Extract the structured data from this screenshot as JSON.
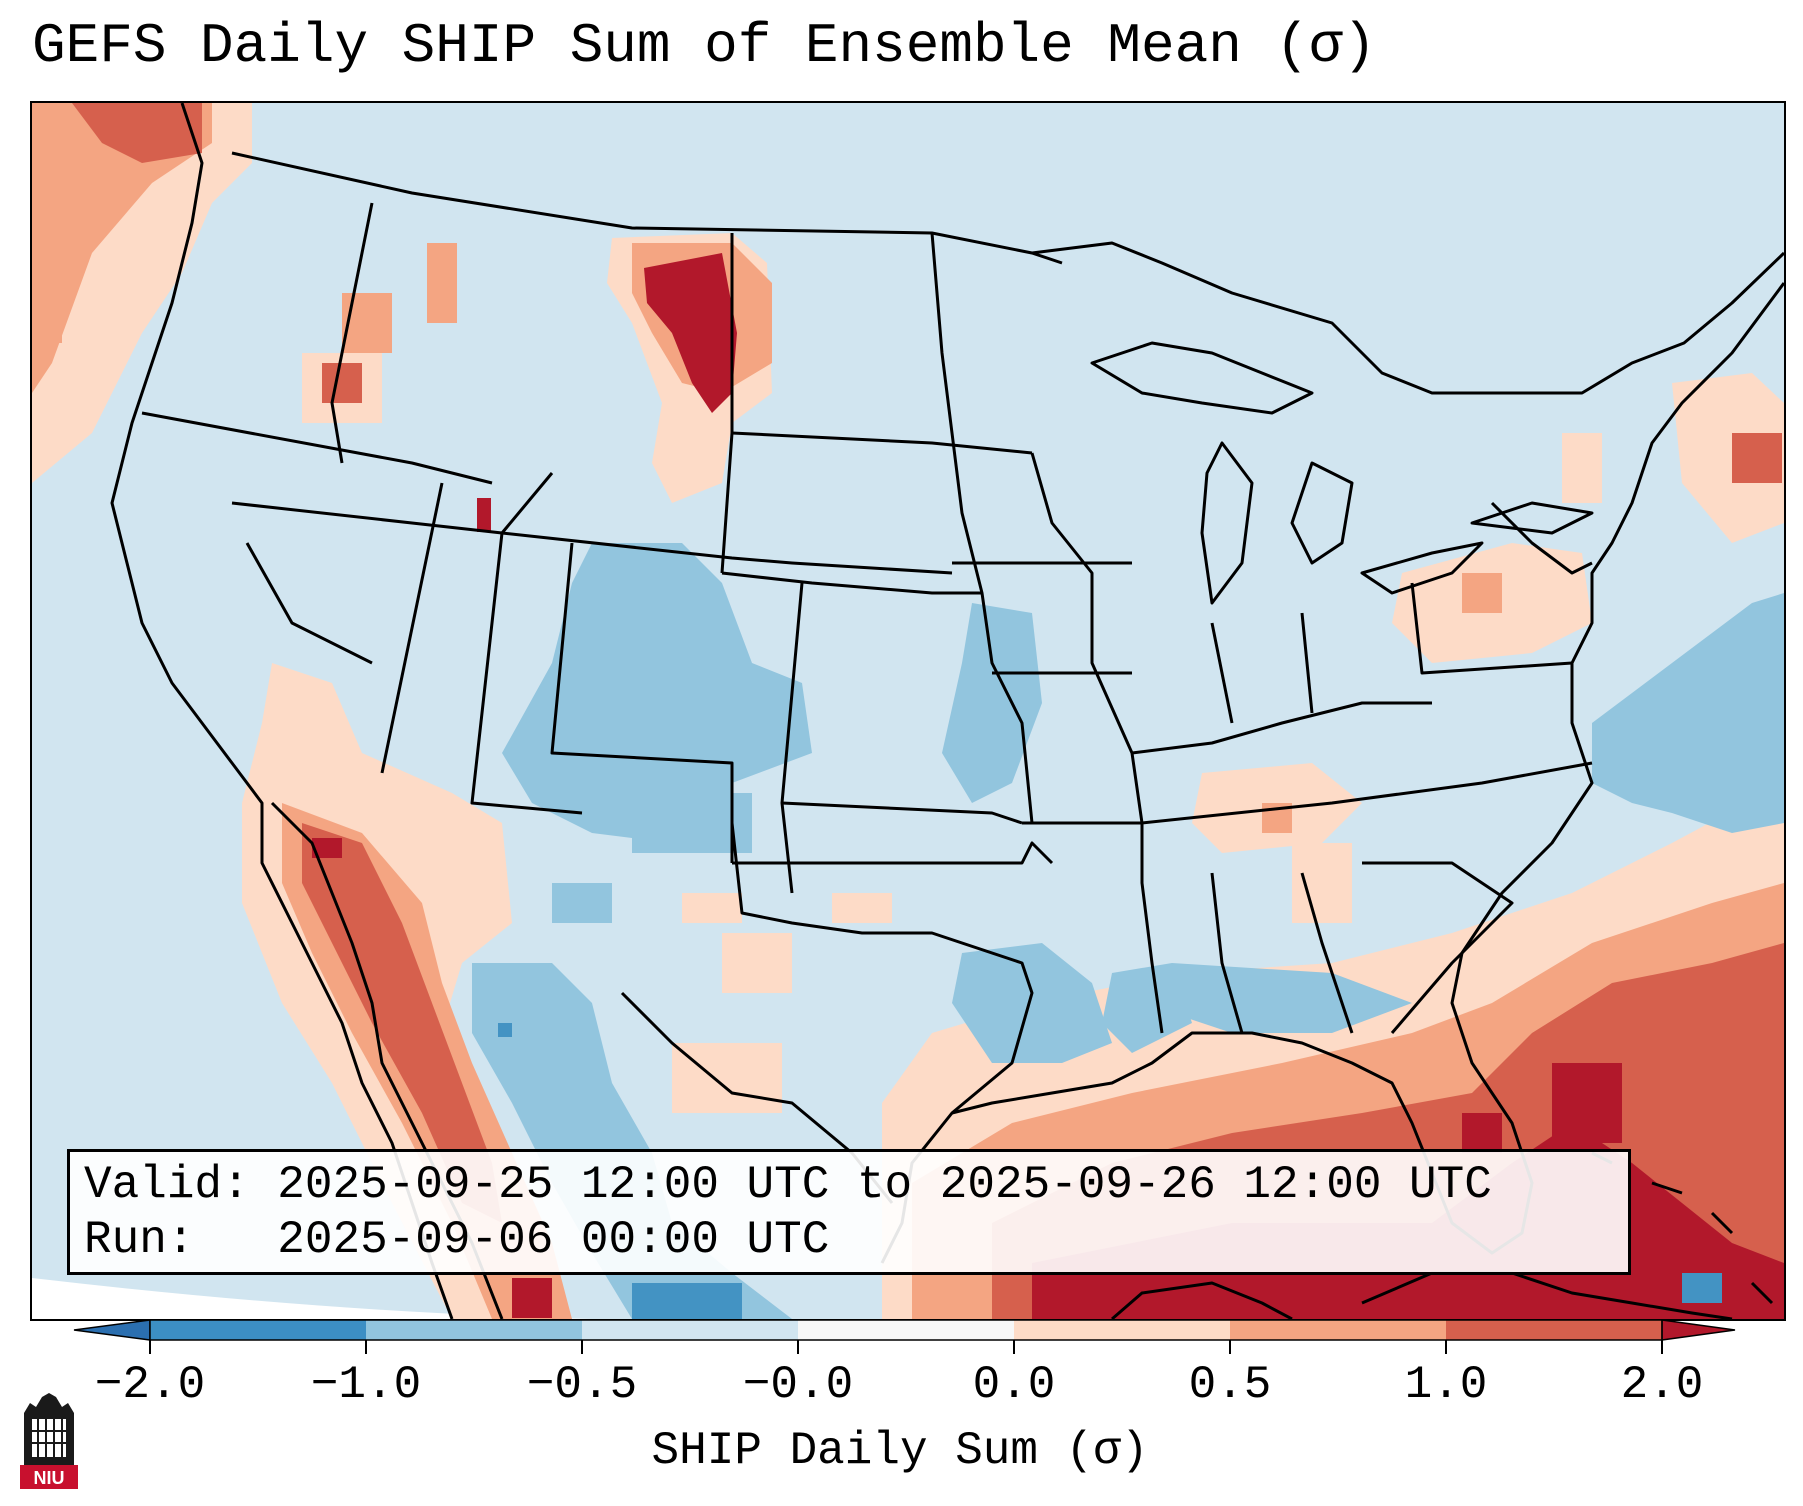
{
  "title": "GEFS Daily SHIP Sum of Ensemble Mean (σ)",
  "info_box": {
    "valid_label": "Valid:",
    "valid_value": "2025-09-25 12:00 UTC to 2025-09-26 12:00 UTC",
    "run_label": "Run:",
    "run_value": "2025-09-06 00:00 UTC"
  },
  "colorbar": {
    "label": "SHIP Daily Sum (σ)",
    "ticks": [
      "−2.0",
      "−1.0",
      "−0.5",
      "−0.0",
      "0.0",
      "0.5",
      "1.0",
      "2.0"
    ],
    "bins": [
      {
        "range": "<-2.0",
        "color": "#2b6fb0"
      },
      {
        "range": "-2.0 to -1.0",
        "color": "#3c8fc4"
      },
      {
        "range": "-1.0 to -0.5",
        "color": "#92c5de"
      },
      {
        "range": "-0.5 to 0.0",
        "color": "#d1e5f0"
      },
      {
        "range": "0.0",
        "color": "#f7f7f7"
      },
      {
        "range": "0.0 to 0.5",
        "color": "#fddbc7"
      },
      {
        "range": "0.5 to 1.0",
        "color": "#f4a582"
      },
      {
        "range": "1.0 to 2.0",
        "color": "#d6604d"
      },
      {
        "range": "2.0+",
        "color": "#b2182b"
      },
      {
        "range": ">2.0",
        "color": "#a50f26"
      }
    ]
  },
  "logo": {
    "text": "NIU"
  },
  "colors": {
    "neutral_land": "#d1e5f0",
    "negative": "#92c5de",
    "strong_negative": "#4393c3",
    "weak_positive": "#fddbc7",
    "positive": "#f4a582",
    "strong_positive": "#d6604d",
    "extreme_positive": "#b2182b"
  }
}
